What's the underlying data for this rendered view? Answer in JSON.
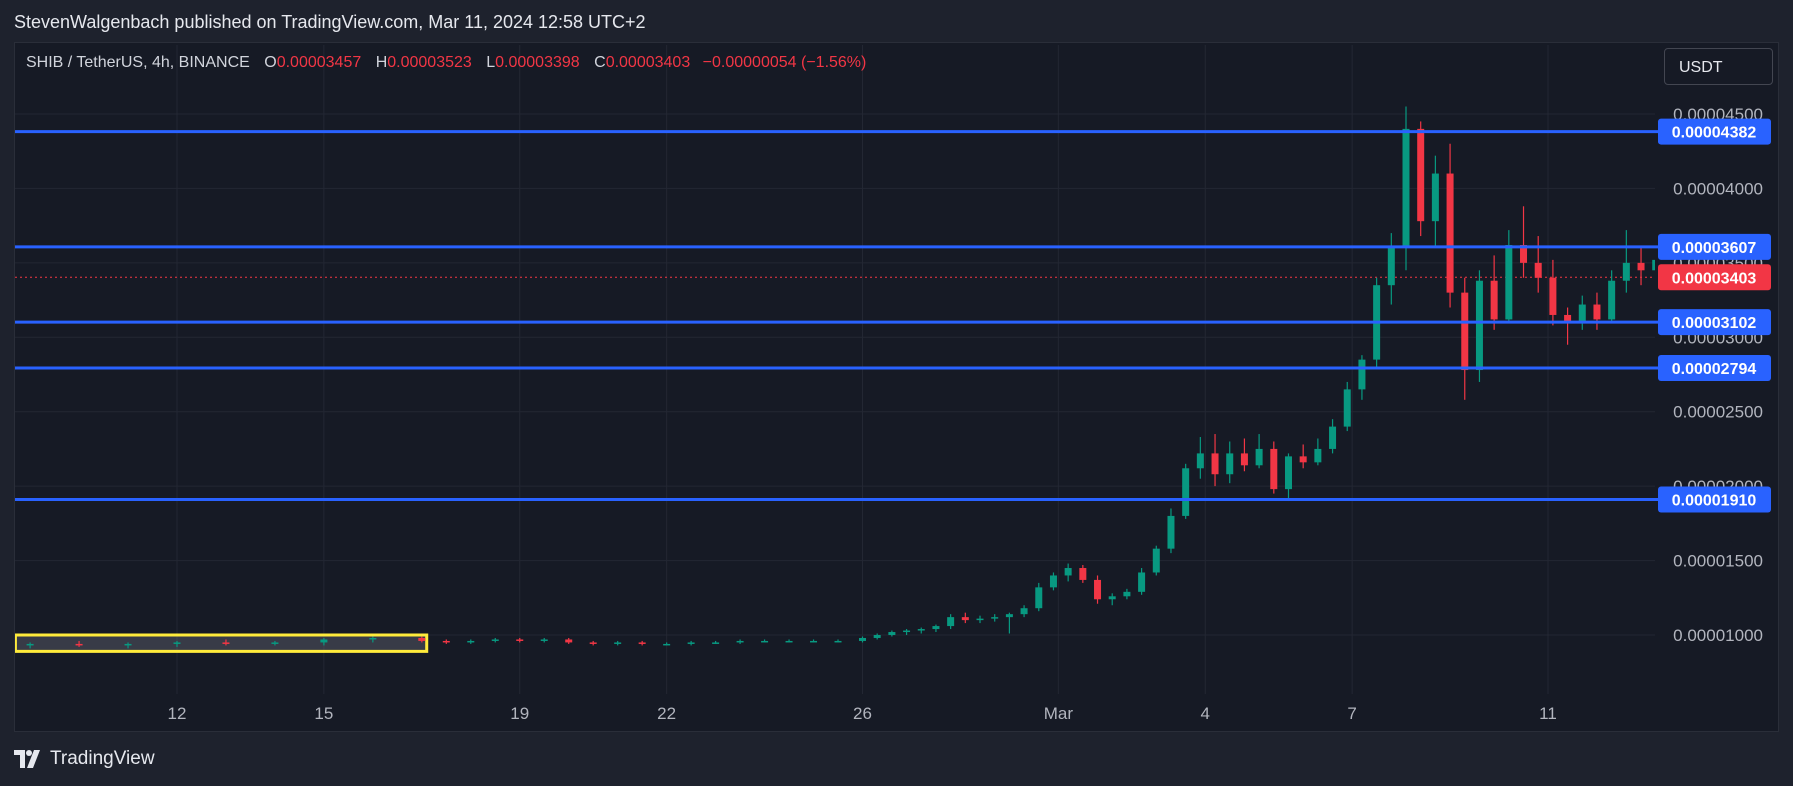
{
  "header": {
    "published": "StevenWalgenbach published on TradingView.com, Mar 11, 2024 12:58 UTC+2"
  },
  "legend": {
    "symbol": "SHIB / TetherUS, 4h, BINANCE",
    "open_label": "O",
    "open": "0.00003457",
    "high_label": "H",
    "high": "0.00003523",
    "low_label": "L",
    "low": "0.00003398",
    "close_label": "C",
    "close": "0.00003403",
    "change": "−0.00000054 (−1.56%)"
  },
  "currency_button": "USDT",
  "footer": {
    "brand": "TradingView"
  },
  "colors": {
    "up": "#089981",
    "down": "#f23645",
    "level_line": "#2962ff",
    "highlight_box": "#ffeb3b",
    "current_price": "#f23645"
  },
  "chart_data": {
    "type": "candlestick",
    "title": "SHIB / TetherUS, 4h, BINANCE",
    "ylim": [
      5e-06,
      4.7e-05
    ],
    "price_ticks": [
      "0.00004500",
      "0.00004000",
      "0.00003500",
      "0.00003000",
      "0.00002500",
      "0.00002000",
      "0.00001500",
      "0.00001000"
    ],
    "price_tick_values": [
      4.5e-05,
      4e-05,
      3.5e-05,
      3e-05,
      2.5e-05,
      2e-05,
      1.5e-05,
      1e-05
    ],
    "date_ticks": [
      "12",
      "15",
      "19",
      "22",
      "26",
      "Mar",
      "4",
      "7",
      "11"
    ],
    "date_tick_days": [
      12,
      15,
      19,
      22,
      26,
      30,
      33,
      36,
      40
    ],
    "levels": [
      {
        "label": "0.00004382",
        "value": 4.382e-05
      },
      {
        "label": "0.00003607",
        "value": 3.607e-05
      },
      {
        "label": "0.00003102",
        "value": 3.102e-05
      },
      {
        "label": "0.00002794",
        "value": 2.794e-05
      },
      {
        "label": "0.00001910",
        "value": 1.91e-05
      }
    ],
    "current_price": {
      "label": "0.00003403",
      "value": 3.403e-05
    },
    "highlight_zone": {
      "start_day": 8.7,
      "end_day": 17.1,
      "low": 8.9e-06,
      "high": 1e-05
    },
    "start_day": 9.0,
    "end_day": 43.5,
    "candles": [
      {
        "d": 9.0,
        "o": 9.3e-06,
        "h": 9.5e-06,
        "l": 9.1e-06,
        "c": 9.4e-06
      },
      {
        "d": 10.0,
        "o": 9.4e-06,
        "h": 9.6e-06,
        "l": 9.2e-06,
        "c": 9.3e-06
      },
      {
        "d": 11.0,
        "o": 9.3e-06,
        "h": 9.5e-06,
        "l": 9.1e-06,
        "c": 9.4e-06
      },
      {
        "d": 12.0,
        "o": 9.4e-06,
        "h": 9.6e-06,
        "l": 9.2e-06,
        "c": 9.5e-06
      },
      {
        "d": 13.0,
        "o": 9.5e-06,
        "h": 9.7e-06,
        "l": 9.3e-06,
        "c": 9.4e-06
      },
      {
        "d": 14.0,
        "o": 9.4e-06,
        "h": 9.6e-06,
        "l": 9.3e-06,
        "c": 9.5e-06
      },
      {
        "d": 15.0,
        "o": 9.5e-06,
        "h": 9.8e-06,
        "l": 9.3e-06,
        "c": 9.7e-06
      },
      {
        "d": 16.0,
        "o": 9.7e-06,
        "h": 9.9e-06,
        "l": 9.5e-06,
        "c": 9.8e-06
      },
      {
        "d": 17.0,
        "o": 9.8e-06,
        "h": 9.9e-06,
        "l": 9.5e-06,
        "c": 9.6e-06
      },
      {
        "d": 17.5,
        "o": 9.6e-06,
        "h": 9.7e-06,
        "l": 9.4e-06,
        "c": 9.5e-06
      },
      {
        "d": 18.0,
        "o": 9.5e-06,
        "h": 9.7e-06,
        "l": 9.4e-06,
        "c": 9.6e-06
      },
      {
        "d": 18.5,
        "o": 9.6e-06,
        "h": 9.8e-06,
        "l": 9.5e-06,
        "c": 9.7e-06
      },
      {
        "d": 19.0,
        "o": 9.7e-06,
        "h": 9.8e-06,
        "l": 9.5e-06,
        "c": 9.6e-06
      },
      {
        "d": 19.5,
        "o": 9.6e-06,
        "h": 9.8e-06,
        "l": 9.5e-06,
        "c": 9.7e-06
      },
      {
        "d": 20.0,
        "o": 9.7e-06,
        "h": 9.8e-06,
        "l": 9.4e-06,
        "c": 9.5e-06
      },
      {
        "d": 20.5,
        "o": 9.5e-06,
        "h": 9.6e-06,
        "l": 9.3e-06,
        "c": 9.4e-06
      },
      {
        "d": 21.0,
        "o": 9.4e-06,
        "h": 9.6e-06,
        "l": 9.3e-06,
        "c": 9.5e-06
      },
      {
        "d": 21.5,
        "o": 9.5e-06,
        "h": 9.6e-06,
        "l": 9.3e-06,
        "c": 9.4e-06
      },
      {
        "d": 22.0,
        "o": 9.4e-06,
        "h": 9.5e-06,
        "l": 9.3e-06,
        "c": 9.4e-06
      },
      {
        "d": 22.5,
        "o": 9.4e-06,
        "h": 9.6e-06,
        "l": 9.3e-06,
        "c": 9.5e-06
      },
      {
        "d": 23.0,
        "o": 9.5e-06,
        "h": 9.6e-06,
        "l": 9.4e-06,
        "c": 9.5e-06
      },
      {
        "d": 23.5,
        "o": 9.5e-06,
        "h": 9.7e-06,
        "l": 9.4e-06,
        "c": 9.6e-06
      },
      {
        "d": 24.0,
        "o": 9.6e-06,
        "h": 9.7e-06,
        "l": 9.5e-06,
        "c": 9.6e-06
      },
      {
        "d": 24.5,
        "o": 9.6e-06,
        "h": 9.7e-06,
        "l": 9.5e-06,
        "c": 9.6e-06
      },
      {
        "d": 25.0,
        "o": 9.6e-06,
        "h": 9.7e-06,
        "l": 9.5e-06,
        "c": 9.6e-06
      },
      {
        "d": 25.5,
        "o": 9.6e-06,
        "h": 9.7e-06,
        "l": 9.5e-06,
        "c": 9.6e-06
      },
      {
        "d": 26.0,
        "o": 9.6e-06,
        "h": 9.9e-06,
        "l": 9.5e-06,
        "c": 9.8e-06
      },
      {
        "d": 26.3,
        "o": 9.8e-06,
        "h": 1.01e-05,
        "l": 9.7e-06,
        "c": 1e-05
      },
      {
        "d": 26.6,
        "o": 1e-05,
        "h": 1.03e-05,
        "l": 9.9e-06,
        "c": 1.02e-05
      },
      {
        "d": 26.9,
        "o": 1.02e-05,
        "h": 1.04e-05,
        "l": 1e-05,
        "c": 1.03e-05
      },
      {
        "d": 27.2,
        "o": 1.03e-05,
        "h": 1.05e-05,
        "l": 1.01e-05,
        "c": 1.04e-05
      },
      {
        "d": 27.5,
        "o": 1.04e-05,
        "h": 1.07e-05,
        "l": 1.02e-05,
        "c": 1.06e-05
      },
      {
        "d": 27.8,
        "o": 1.06e-05,
        "h": 1.14e-05,
        "l": 1.04e-05,
        "c": 1.12e-05
      },
      {
        "d": 28.1,
        "o": 1.12e-05,
        "h": 1.15e-05,
        "l": 1.08e-05,
        "c": 1.1e-05
      },
      {
        "d": 28.4,
        "o": 1.1e-05,
        "h": 1.13e-05,
        "l": 1.08e-05,
        "c": 1.11e-05
      },
      {
        "d": 28.7,
        "o": 1.11e-05,
        "h": 1.14e-05,
        "l": 1.09e-05,
        "c": 1.12e-05
      },
      {
        "d": 29.0,
        "o": 1.12e-05,
        "h": 1.15e-05,
        "l": 1.01e-05,
        "c": 1.14e-05
      },
      {
        "d": 29.3,
        "o": 1.14e-05,
        "h": 1.2e-05,
        "l": 1.12e-05,
        "c": 1.18e-05
      },
      {
        "d": 29.6,
        "o": 1.18e-05,
        "h": 1.35e-05,
        "l": 1.16e-05,
        "c": 1.32e-05
      },
      {
        "d": 29.9,
        "o": 1.32e-05,
        "h": 1.42e-05,
        "l": 1.3e-05,
        "c": 1.4e-05
      },
      {
        "d": 30.2,
        "o": 1.4e-05,
        "h": 1.48e-05,
        "l": 1.36e-05,
        "c": 1.45e-05
      },
      {
        "d": 30.5,
        "o": 1.45e-05,
        "h": 1.47e-05,
        "l": 1.35e-05,
        "c": 1.37e-05
      },
      {
        "d": 30.8,
        "o": 1.37e-05,
        "h": 1.4e-05,
        "l": 1.21e-05,
        "c": 1.24e-05
      },
      {
        "d": 31.1,
        "o": 1.24e-05,
        "h": 1.28e-05,
        "l": 1.2e-05,
        "c": 1.26e-05
      },
      {
        "d": 31.4,
        "o": 1.26e-05,
        "h": 1.31e-05,
        "l": 1.24e-05,
        "c": 1.29e-05
      },
      {
        "d": 31.7,
        "o": 1.29e-05,
        "h": 1.45e-05,
        "l": 1.27e-05,
        "c": 1.42e-05
      },
      {
        "d": 32.0,
        "o": 1.42e-05,
        "h": 1.6e-05,
        "l": 1.4e-05,
        "c": 1.58e-05
      },
      {
        "d": 32.3,
        "o": 1.58e-05,
        "h": 1.85e-05,
        "l": 1.55e-05,
        "c": 1.8e-05
      },
      {
        "d": 32.6,
        "o": 1.8e-05,
        "h": 2.15e-05,
        "l": 1.78e-05,
        "c": 2.12e-05
      },
      {
        "d": 32.9,
        "o": 2.12e-05,
        "h": 2.33e-05,
        "l": 2.05e-05,
        "c": 2.22e-05
      },
      {
        "d": 33.2,
        "o": 2.22e-05,
        "h": 2.35e-05,
        "l": 2e-05,
        "c": 2.08e-05
      },
      {
        "d": 33.5,
        "o": 2.08e-05,
        "h": 2.3e-05,
        "l": 2.02e-05,
        "c": 2.22e-05
      },
      {
        "d": 33.8,
        "o": 2.22e-05,
        "h": 2.32e-05,
        "l": 2.1e-05,
        "c": 2.14e-05
      },
      {
        "d": 34.1,
        "o": 2.14e-05,
        "h": 2.35e-05,
        "l": 2.12e-05,
        "c": 2.25e-05
      },
      {
        "d": 34.4,
        "o": 2.25e-05,
        "h": 2.3e-05,
        "l": 1.95e-05,
        "c": 1.98e-05
      },
      {
        "d": 34.7,
        "o": 1.98e-05,
        "h": 2.22e-05,
        "l": 1.9e-05,
        "c": 2.2e-05
      },
      {
        "d": 35.0,
        "o": 2.2e-05,
        "h": 2.28e-05,
        "l": 2.12e-05,
        "c": 2.16e-05
      },
      {
        "d": 35.3,
        "o": 2.16e-05,
        "h": 2.32e-05,
        "l": 2.14e-05,
        "c": 2.25e-05
      },
      {
        "d": 35.6,
        "o": 2.25e-05,
        "h": 2.45e-05,
        "l": 2.22e-05,
        "c": 2.4e-05
      },
      {
        "d": 35.9,
        "o": 2.4e-05,
        "h": 2.7e-05,
        "l": 2.37e-05,
        "c": 2.65e-05
      },
      {
        "d": 36.2,
        "o": 2.65e-05,
        "h": 2.88e-05,
        "l": 2.58e-05,
        "c": 2.85e-05
      },
      {
        "d": 36.5,
        "o": 2.85e-05,
        "h": 3.4e-05,
        "l": 2.8e-05,
        "c": 3.35e-05
      },
      {
        "d": 36.8,
        "o": 3.35e-05,
        "h": 3.7e-05,
        "l": 3.22e-05,
        "c": 3.6e-05
      },
      {
        "d": 37.1,
        "o": 3.6e-05,
        "h": 4.55e-05,
        "l": 3.45e-05,
        "c": 4.4e-05
      },
      {
        "d": 37.4,
        "o": 4.4e-05,
        "h": 4.45e-05,
        "l": 3.68e-05,
        "c": 3.78e-05
      },
      {
        "d": 37.7,
        "o": 3.78e-05,
        "h": 4.22e-05,
        "l": 3.6e-05,
        "c": 4.1e-05
      },
      {
        "d": 38.0,
        "o": 4.1e-05,
        "h": 4.3e-05,
        "l": 3.2e-05,
        "c": 3.3e-05
      },
      {
        "d": 38.3,
        "o": 3.3e-05,
        "h": 3.4e-05,
        "l": 2.58e-05,
        "c": 2.78e-05
      },
      {
        "d": 38.6,
        "o": 2.78e-05,
        "h": 3.45e-05,
        "l": 2.7e-05,
        "c": 3.38e-05
      },
      {
        "d": 38.9,
        "o": 3.38e-05,
        "h": 3.55e-05,
        "l": 3.05e-05,
        "c": 3.12e-05
      },
      {
        "d": 39.2,
        "o": 3.12e-05,
        "h": 3.72e-05,
        "l": 3.1e-05,
        "c": 3.62e-05
      },
      {
        "d": 39.5,
        "o": 3.62e-05,
        "h": 3.88e-05,
        "l": 3.4e-05,
        "c": 3.5e-05
      },
      {
        "d": 39.8,
        "o": 3.5e-05,
        "h": 3.68e-05,
        "l": 3.3e-05,
        "c": 3.4e-05
      },
      {
        "d": 40.1,
        "o": 3.4e-05,
        "h": 3.52e-05,
        "l": 3.08e-05,
        "c": 3.15e-05
      },
      {
        "d": 40.4,
        "o": 3.15e-05,
        "h": 3.2e-05,
        "l": 2.95e-05,
        "c": 3.1e-05
      },
      {
        "d": 40.7,
        "o": 3.1e-05,
        "h": 3.28e-05,
        "l": 3.05e-05,
        "c": 3.22e-05
      },
      {
        "d": 41.0,
        "o": 3.22e-05,
        "h": 3.3e-05,
        "l": 3.05e-05,
        "c": 3.12e-05
      },
      {
        "d": 41.3,
        "o": 3.12e-05,
        "h": 3.45e-05,
        "l": 3.1e-05,
        "c": 3.38e-05
      },
      {
        "d": 41.6,
        "o": 3.38e-05,
        "h": 3.72e-05,
        "l": 3.3e-05,
        "c": 3.5e-05
      },
      {
        "d": 41.9,
        "o": 3.5e-05,
        "h": 3.6e-05,
        "l": 3.35e-05,
        "c": 3.45e-05
      },
      {
        "d": 42.2,
        "o": 3.45e-05,
        "h": 3.62e-05,
        "l": 3.38e-05,
        "c": 3.52e-05
      },
      {
        "d": 42.5,
        "o": 3.52e-05,
        "h": 3.62e-05,
        "l": 3.4e-05,
        "c": 3.48e-05
      },
      {
        "d": 42.8,
        "o": 3.48e-05,
        "h": 3.52e-05,
        "l": 3.38e-05,
        "c": 3.45e-05
      },
      {
        "d": 43.1,
        "o": 3.45e-05,
        "h": 3.5e-05,
        "l": 3.25e-05,
        "c": 3.28e-05
      },
      {
        "d": 43.4,
        "o": 3.28e-05,
        "h": 3.38e-05,
        "l": 3e-05,
        "c": 3.18e-05
      },
      {
        "d": 43.7,
        "o": 3.18e-05,
        "h": 3.45e-05,
        "l": 3.15e-05,
        "c": 3.46e-05
      },
      {
        "d": 44.0,
        "o": 3.46e-05,
        "h": 3.52e-05,
        "l": 3.38e-05,
        "c": 3.4e-05
      }
    ]
  }
}
